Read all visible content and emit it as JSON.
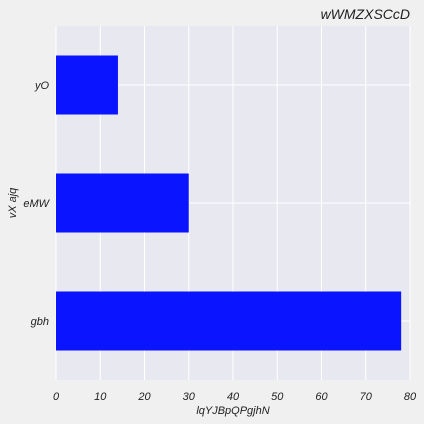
{
  "chart_data": {
    "type": "bar",
    "orientation": "horizontal",
    "title": "wWMZXSCcD",
    "xlabel": "lqYJBpQPgjhN",
    "ylabel": "vX ajq",
    "categories": [
      "gbh",
      "eMW",
      "yO"
    ],
    "values": [
      78,
      30,
      14
    ],
    "xlim": [
      0,
      80
    ],
    "xticks": [
      0,
      10,
      20,
      30,
      40,
      50,
      60,
      70,
      80
    ],
    "grid": true,
    "bar_color": "#0a14ff",
    "plot_background": "#e8e8f0",
    "page_background": "#f0f0f0"
  }
}
